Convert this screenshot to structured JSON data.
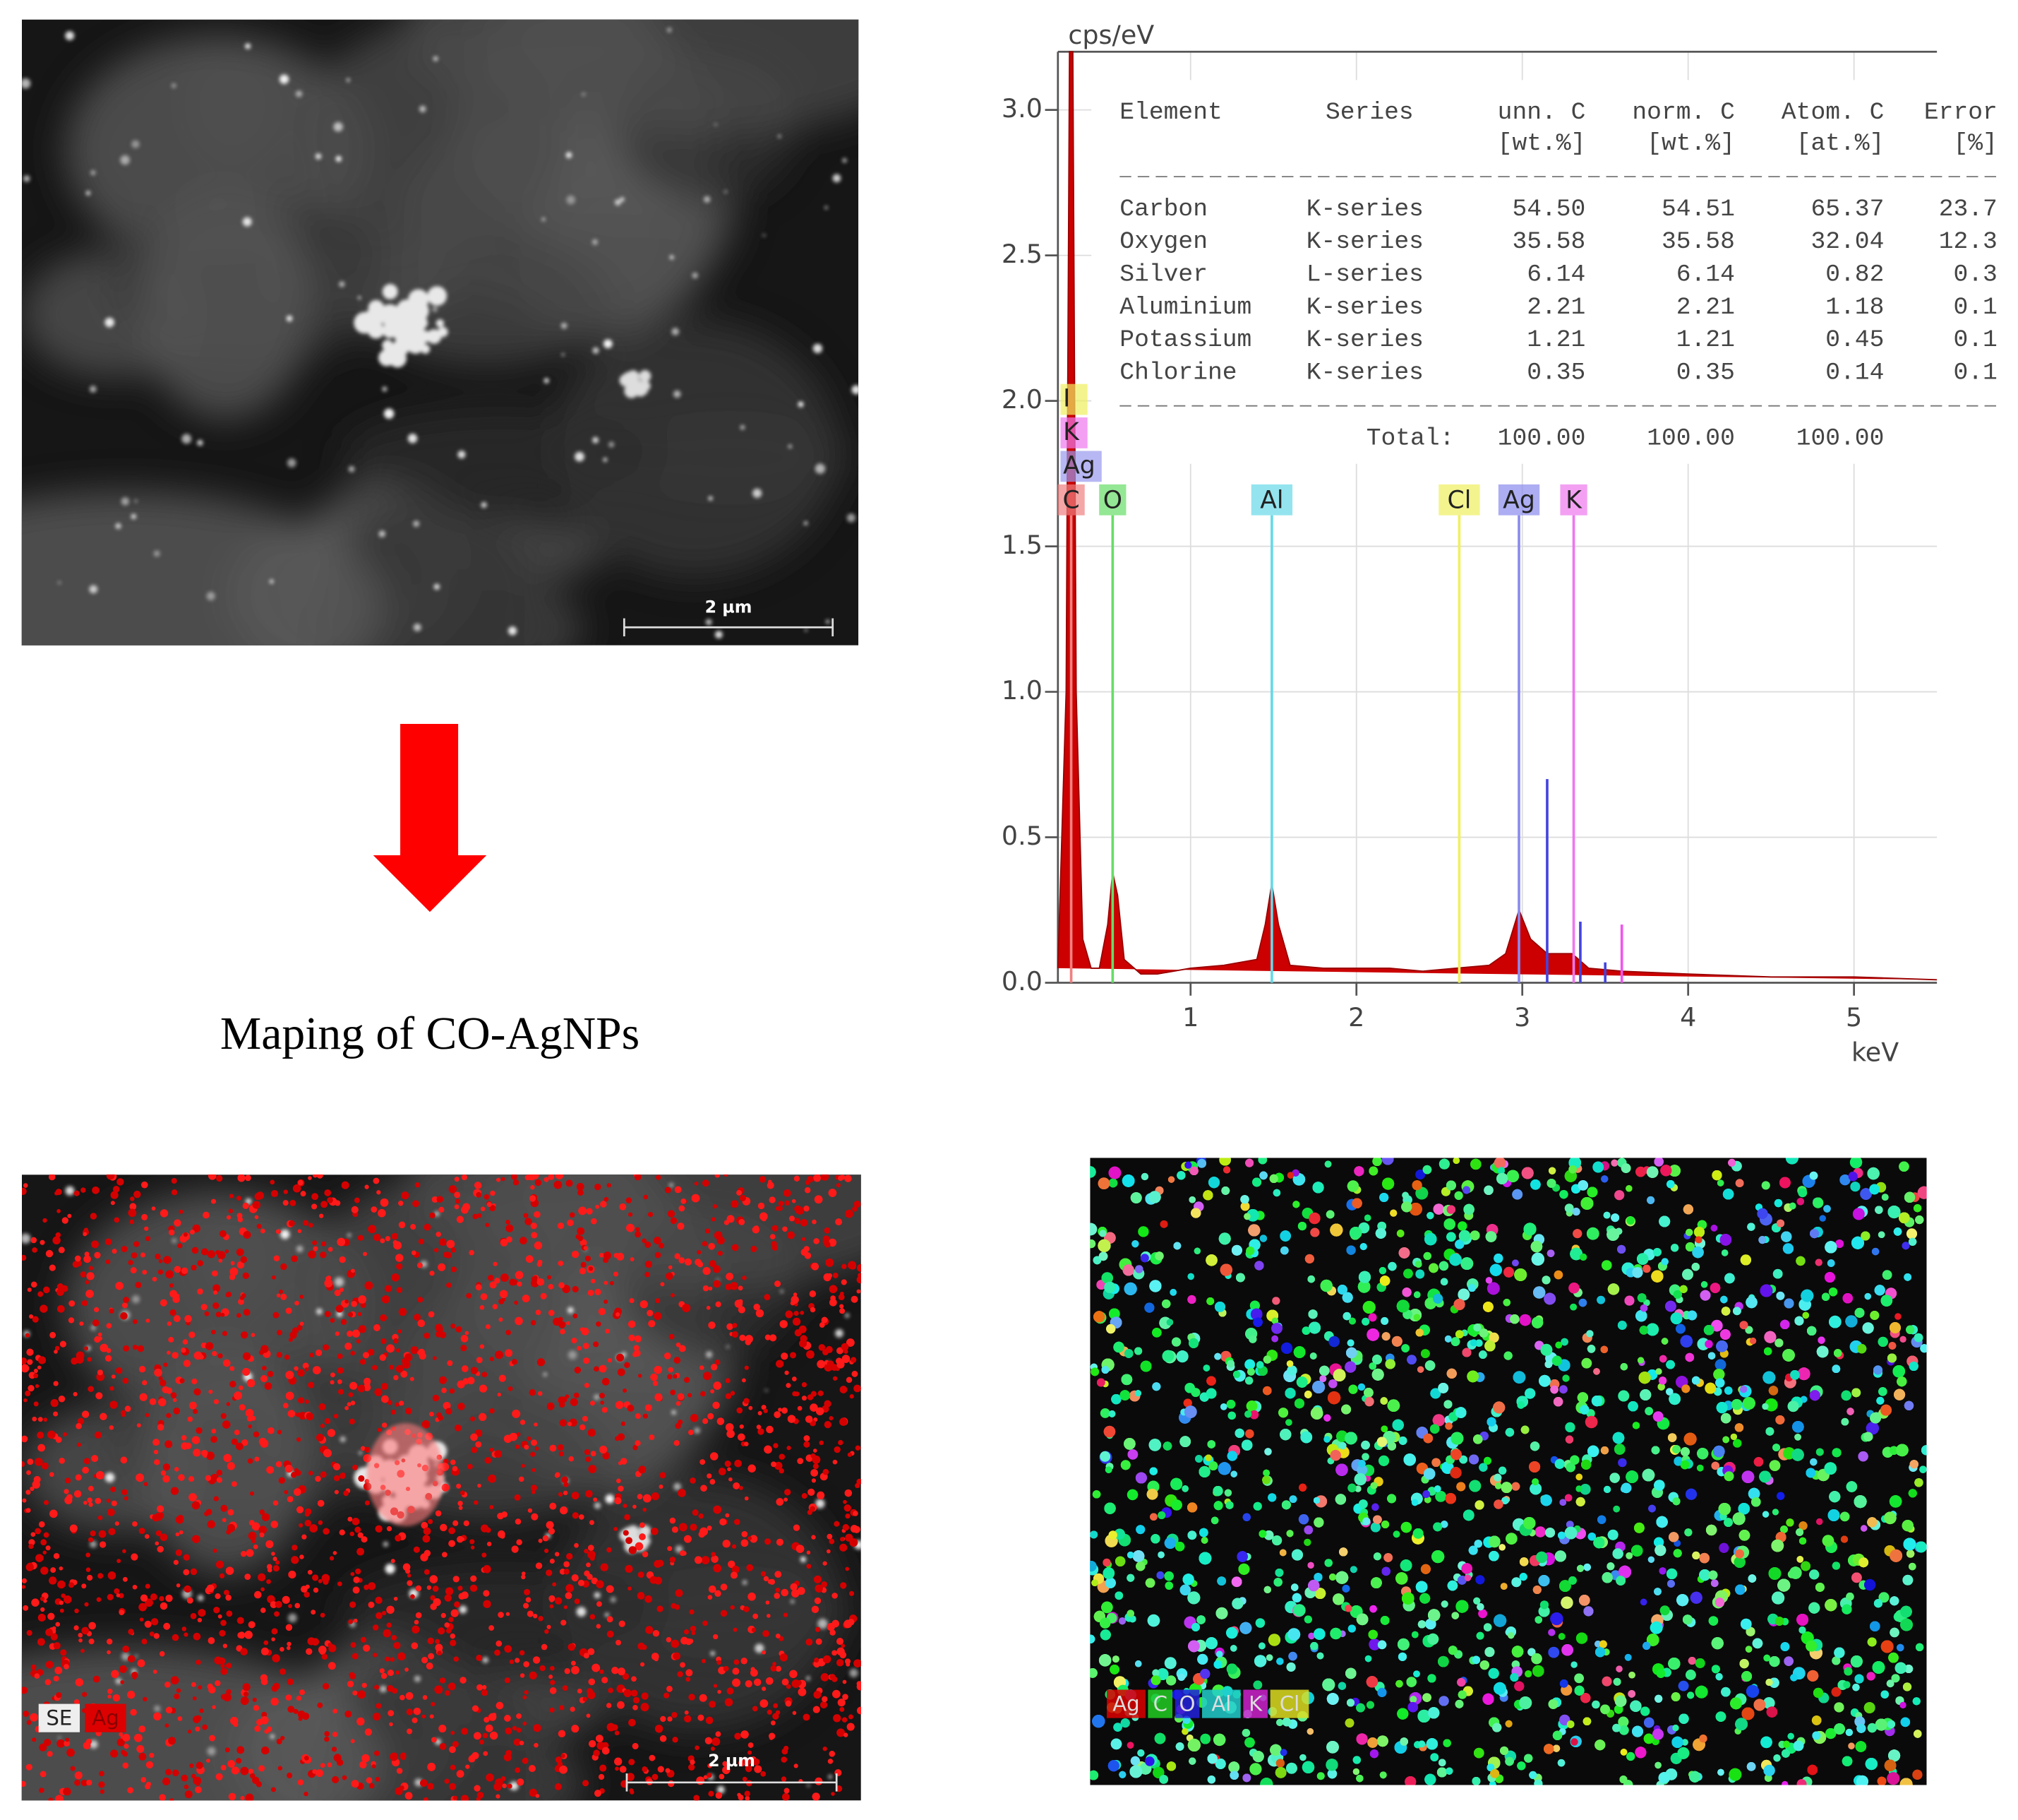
{
  "sem_image": {
    "scale_bar": "2 µm"
  },
  "caption": "Maping of CO-AgNPs",
  "chart_data": {
    "type": "area",
    "y_label": "cps/eV",
    "x_label": "keV",
    "xlim": [
      0.2,
      5.5
    ],
    "xticks": [
      1,
      2,
      3,
      4,
      5
    ],
    "ylim": [
      0,
      3.2
    ],
    "yticks": [
      {
        "value": 0,
        "label": "0.0"
      },
      0.5,
      {
        "value": 1,
        "label": "1.0"
      },
      1.5,
      {
        "value": 2,
        "label": "2.0"
      },
      2.5,
      {
        "value": 3,
        "label": "3.0"
      }
    ],
    "grid": true,
    "color": "#cc0000",
    "x": [
      0.2,
      0.25,
      0.27,
      0.29,
      0.31,
      0.35,
      0.4,
      0.45,
      0.5,
      0.53,
      0.56,
      0.6,
      0.7,
      0.8,
      1.0,
      1.2,
      1.4,
      1.45,
      1.49,
      1.53,
      1.6,
      1.8,
      2.0,
      2.2,
      2.4,
      2.6,
      2.8,
      2.9,
      2.98,
      3.05,
      3.15,
      3.3,
      3.4,
      3.6,
      4.0,
      4.5,
      5.0,
      5.5
    ],
    "values": [
      0.05,
      1.0,
      3.2,
      3.2,
      1.0,
      0.15,
      0.05,
      0.05,
      0.2,
      0.38,
      0.3,
      0.08,
      0.03,
      0.03,
      0.05,
      0.06,
      0.08,
      0.2,
      0.34,
      0.2,
      0.06,
      0.05,
      0.05,
      0.05,
      0.04,
      0.05,
      0.06,
      0.1,
      0.25,
      0.15,
      0.1,
      0.1,
      0.05,
      0.04,
      0.03,
      0.02,
      0.02,
      0.01
    ],
    "element_lines": [
      {
        "label": "C",
        "x": 0.28,
        "color": "#f08080"
      },
      {
        "label": "O",
        "x": 0.53,
        "color": "#66dd66"
      },
      {
        "label": "Al",
        "x": 1.49,
        "color": "#66d9e8"
      },
      {
        "label": "Cl",
        "x": 2.62,
        "color": "#f0f060"
      },
      {
        "label": "Ag",
        "x": 2.98,
        "color": "#8a8aee"
      },
      {
        "label": "K",
        "x": 3.31,
        "color": "#ee77ee"
      }
    ],
    "stacked_labels": [
      {
        "label": "I",
        "color": "#f0f060"
      },
      {
        "label": "K",
        "color": "#ee77ee"
      },
      {
        "label": "Ag",
        "color": "#9999ee"
      }
    ],
    "minor_lines": [
      {
        "x": 3.15,
        "y": 0.7,
        "color": "#4444dd"
      },
      {
        "x": 3.35,
        "y": 0.21,
        "color": "#4444dd"
      },
      {
        "x": 3.5,
        "y": 0.07,
        "color": "#4444dd"
      },
      {
        "x": 3.6,
        "y": 0.2,
        "color": "#ee55ee"
      }
    ]
  },
  "table": {
    "headers": [
      "Element",
      "Series",
      "unn. C",
      "norm. C",
      "Atom. C",
      "Error"
    ],
    "units": [
      "[wt.%]",
      "[wt.%]",
      "[at.%]",
      "[%]"
    ],
    "rows": [
      [
        "Carbon",
        "K-series",
        "54.50",
        "54.51",
        "65.37",
        "23.7"
      ],
      [
        "Oxygen",
        "K-series",
        "35.58",
        "35.58",
        "32.04",
        "12.3"
      ],
      [
        "Silver",
        "L-series",
        "6.14",
        "6.14",
        "0.82",
        "0.3"
      ],
      [
        "Aluminium",
        "K-series",
        "2.21",
        "2.21",
        "1.18",
        "0.1"
      ],
      [
        "Potassium",
        "K-series",
        "1.21",
        "1.21",
        "0.45",
        "0.1"
      ],
      [
        "Chlorine",
        "K-series",
        "0.35",
        "0.35",
        "0.14",
        "0.1"
      ]
    ],
    "total_label": "Total:",
    "totals": [
      "100.00",
      "100.00",
      "100.00"
    ]
  },
  "ag_map": {
    "legend": [
      {
        "label": "SE",
        "color": "#eeeeee"
      },
      {
        "label": "Ag",
        "color": "#dd0000"
      }
    ],
    "scale_bar": "2 µm"
  },
  "multi_map": {
    "legend": [
      {
        "label": "Ag",
        "color": "#dd0000"
      },
      {
        "label": "C",
        "color": "#22cc22"
      },
      {
        "label": "O",
        "color": "#2222dd"
      },
      {
        "label": "Al",
        "color": "#22cccc"
      },
      {
        "label": "K",
        "color": "#cc22cc"
      },
      {
        "label": "Cl",
        "color": "#dddd22"
      }
    ]
  }
}
